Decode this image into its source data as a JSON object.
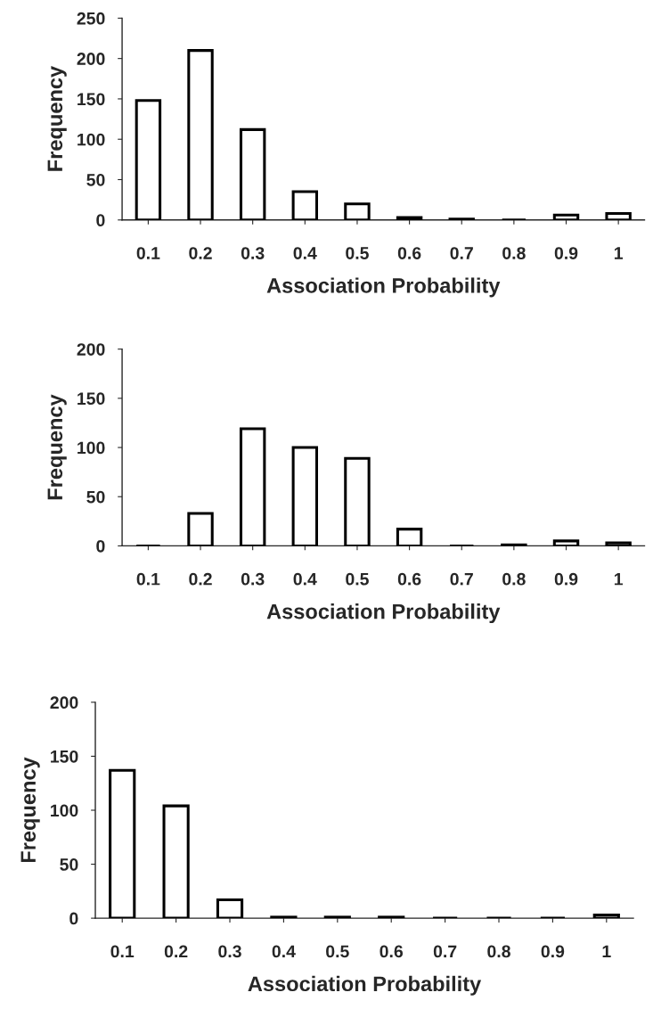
{
  "chart_data": [
    {
      "type": "bar",
      "xlabel": "Association Probability",
      "ylabel": "Frequency",
      "categories": [
        "0.1",
        "0.2",
        "0.3",
        "0.4",
        "0.5",
        "0.6",
        "0.7",
        "0.8",
        "0.9",
        "1"
      ],
      "values": [
        148,
        210,
        112,
        35,
        20,
        3,
        1,
        0,
        6,
        8
      ],
      "color": "#000000",
      "ylim": [
        0,
        250
      ],
      "yticks": [
        0,
        50,
        100,
        150,
        200,
        250
      ],
      "grid": false,
      "legend": false
    },
    {
      "type": "bar",
      "xlabel": "Association Probability",
      "ylabel": "Frequency",
      "categories": [
        "0.1",
        "0.2",
        "0.3",
        "0.4",
        "0.5",
        "0.6",
        "0.7",
        "0.8",
        "0.9",
        "1"
      ],
      "values": [
        0,
        33,
        119,
        100,
        89,
        17,
        0,
        1,
        5,
        3
      ],
      "color": "#000000",
      "ylim": [
        0,
        200
      ],
      "yticks": [
        0,
        50,
        100,
        150,
        200
      ],
      "grid": false,
      "legend": false
    },
    {
      "type": "bar",
      "xlabel": "Association Probability",
      "ylabel": "Frequency",
      "categories": [
        "0.1",
        "0.2",
        "0.3",
        "0.4",
        "0.5",
        "0.6",
        "0.7",
        "0.8",
        "0.9",
        "1"
      ],
      "values": [
        137,
        104,
        17,
        1,
        1,
        1,
        0,
        0,
        0,
        3
      ],
      "color": "#000000",
      "ylim": [
        0,
        200
      ],
      "yticks": [
        0,
        50,
        100,
        150,
        200
      ],
      "grid": false,
      "legend": false
    }
  ]
}
